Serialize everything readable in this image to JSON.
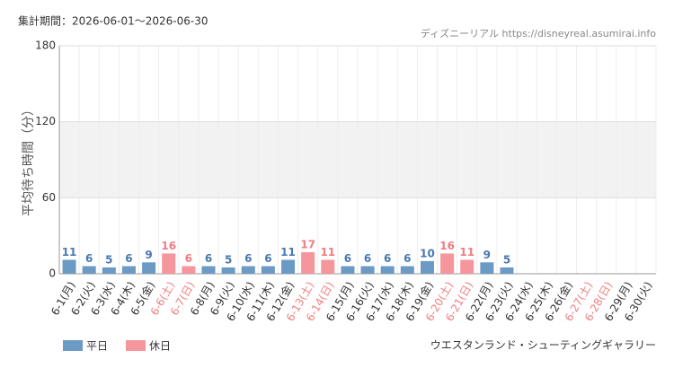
{
  "chart_data": {
    "type": "bar",
    "period": "集計期間：2026-06-01～2026-06-30",
    "source": "ディズニーリアル https://disneyreal.asumirai.info",
    "y_label": "平均待ち時間（分）",
    "footer": "ウエスタンランド・シューティングギャラリー",
    "categories": [
      "6-1(月)",
      "6-2(火)",
      "6-3(水)",
      "6-4(木)",
      "6-5(金)",
      "6-6(土)",
      "6-7(日)",
      "6-8(月)",
      "6-9(火)",
      "6-10(水)",
      "6-11(木)",
      "6-12(金)",
      "6-13(土)",
      "6-14(日)",
      "6-15(月)",
      "6-16(火)",
      "6-17(水)",
      "6-18(木)",
      "6-19(金)",
      "6-20(土)",
      "6-21(日)",
      "6-22(月)",
      "6-23(火)",
      "6-24(水)",
      "6-25(木)",
      "6-26(金)",
      "6-27(土)",
      "6-28(日)",
      "6-29(月)",
      "6-30(火)"
    ],
    "category_colors": [
      "#333",
      "#333",
      "#333",
      "#333",
      "#333",
      "#f08080",
      "#f08080",
      "#333",
      "#333",
      "#333",
      "#333",
      "#333",
      "#f08080",
      "#f08080",
      "#333",
      "#333",
      "#333",
      "#333",
      "#333",
      "#f08080",
      "#f08080",
      "#333",
      "#333",
      "#333",
      "#333",
      "#333",
      "#f08080",
      "#f08080",
      "#333",
      "#333"
    ],
    "series": [
      {
        "name": "平日",
        "color": "#6b9ac4",
        "label_color": "#4a78b0",
        "values": [
          11,
          6,
          5,
          6,
          9,
          null,
          null,
          6,
          5,
          6,
          6,
          11,
          null,
          null,
          6,
          6,
          6,
          6,
          10,
          null,
          null,
          9,
          5,
          null,
          null,
          null,
          null,
          null,
          null,
          null
        ]
      },
      {
        "name": "休日",
        "color": "#f4969c",
        "label_color": "#f07c84",
        "values": [
          null,
          null,
          null,
          null,
          null,
          16,
          6,
          null,
          null,
          null,
          null,
          null,
          17,
          11,
          null,
          null,
          null,
          null,
          null,
          16,
          11,
          null,
          null,
          null,
          null,
          null,
          null,
          null,
          null,
          null
        ]
      }
    ],
    "shaded_band": [
      60,
      120
    ],
    "ylim": [
      0,
      180
    ],
    "yticks": [
      0,
      60,
      120,
      180
    ],
    "grid": true
  }
}
